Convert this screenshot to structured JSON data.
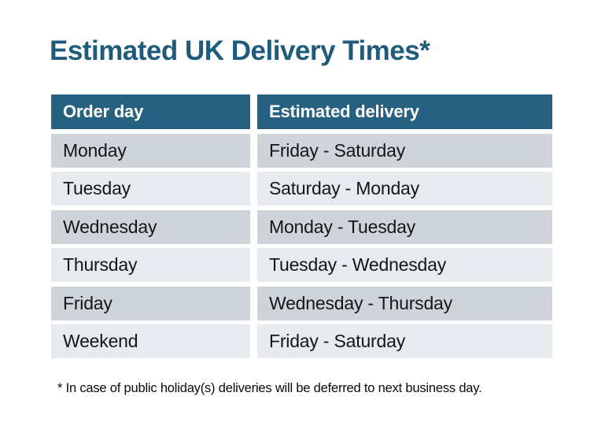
{
  "title": "Estimated UK Delivery Times*",
  "table": {
    "headers": [
      "Order day",
      "Estimated delivery"
    ],
    "rows": [
      {
        "order_day": "Monday",
        "estimated_delivery": "Friday - Saturday"
      },
      {
        "order_day": "Tuesday",
        "estimated_delivery": "Saturday - Monday"
      },
      {
        "order_day": "Wednesday",
        "estimated_delivery": "Monday - Tuesday"
      },
      {
        "order_day": "Thursday",
        "estimated_delivery": "Tuesday - Wednesday"
      },
      {
        "order_day": "Friday",
        "estimated_delivery": "Wednesday - Thursday"
      },
      {
        "order_day": "Weekend",
        "estimated_delivery": "Friday - Saturday"
      }
    ]
  },
  "footnote": "* In case of public holiday(s) deliveries will be deferred to next business day.",
  "colors": {
    "title_text": "#1f5b7b",
    "header_bg": "#266182",
    "header_text": "#ffffff",
    "row_dark_bg": "#cfd3da",
    "row_light_bg": "#e7eaee",
    "body_text": "#161616",
    "background": "#ffffff"
  },
  "chart_data": {
    "type": "table",
    "title": "Estimated UK Delivery Times*",
    "columns": [
      "Order day",
      "Estimated delivery"
    ],
    "rows": [
      [
        "Monday",
        "Friday - Saturday"
      ],
      [
        "Tuesday",
        "Saturday - Monday"
      ],
      [
        "Wednesday",
        "Monday - Tuesday"
      ],
      [
        "Thursday",
        "Tuesday - Wednesday"
      ],
      [
        "Friday",
        "Wednesday - Thursday"
      ],
      [
        "Weekend",
        "Friday - Saturday"
      ]
    ],
    "footnote": "* In case of public holiday(s) deliveries will be deferred to next business day.",
    "layout_hints": {
      "header_fill": "#266182",
      "alternating_row_fills": [
        "#cfd3da",
        "#e7eaee"
      ],
      "grid": "white gutters between cells, no borders"
    }
  }
}
